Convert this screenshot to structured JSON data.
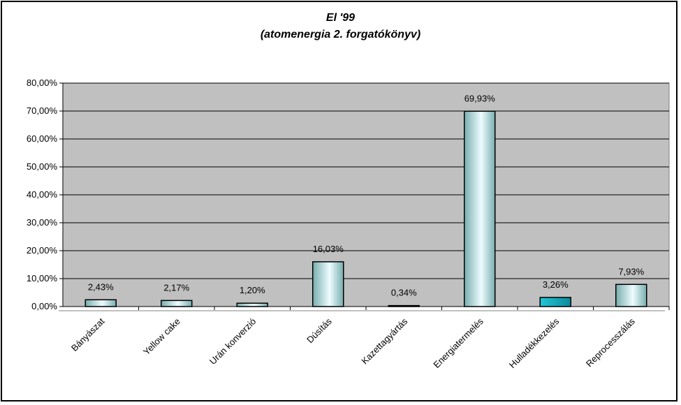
{
  "chart_data": {
    "type": "bar",
    "title": "El '99",
    "subtitle": "(atomenergia 2. forgatókönyv)",
    "xlabel": "",
    "ylabel": "",
    "ylim": [
      0,
      80
    ],
    "yticks": [
      "0,00%",
      "10,00%",
      "20,00%",
      "30,00%",
      "40,00%",
      "50,00%",
      "60,00%",
      "70,00%",
      "80,00%"
    ],
    "categories": [
      "Bányászat",
      "Yellow cake",
      "Urán konverzió",
      "Dúsítás",
      "Kazettagyártás",
      "Energiatermelés",
      "Hulladékkezelés",
      "Reprocesszálás"
    ],
    "values": [
      2.43,
      2.17,
      1.2,
      16.03,
      0.34,
      69.93,
      3.26,
      7.93
    ],
    "data_labels": [
      "2,43%",
      "2,17%",
      "1,20%",
      "16,03%",
      "0,34%",
      "69,93%",
      "3,26%",
      "7,93%"
    ],
    "grid": true,
    "legend": "none",
    "colors": {
      "plot_background": "#c0c0c0",
      "bar_light": "#eefcff",
      "bar_dark": "#78aeae",
      "bar_highlight": "#22c6d8",
      "gridline": "#000000"
    },
    "highlight_index": 6
  }
}
